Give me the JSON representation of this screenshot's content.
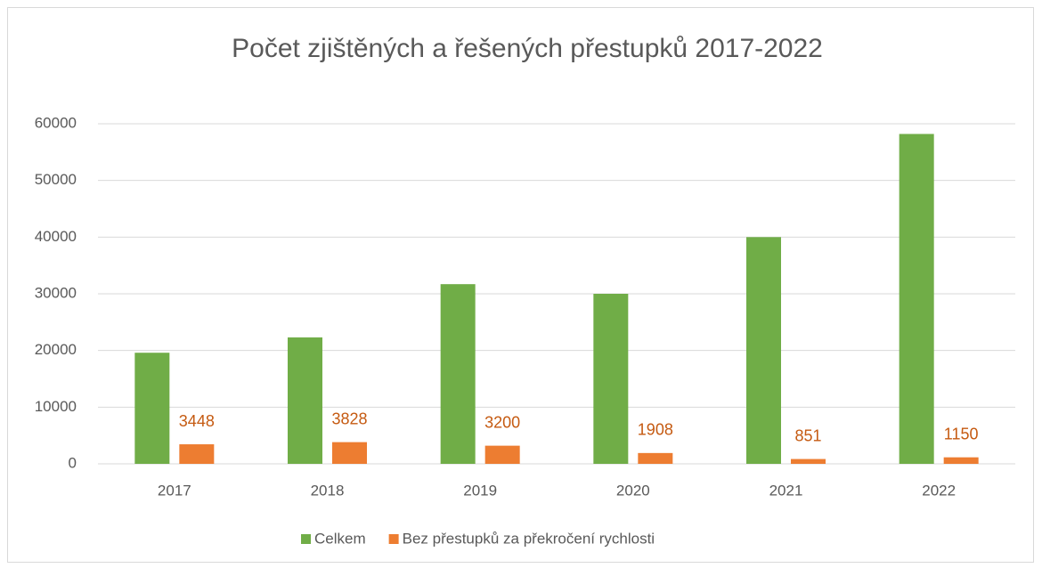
{
  "chart_data": {
    "type": "bar",
    "title": "Počet zjištěných a řešených přestupků 2017-2022",
    "categories": [
      "2017",
      "2018",
      "2019",
      "2020",
      "2021",
      "2022"
    ],
    "series": [
      {
        "name": "Celkem",
        "color": "#70ad47",
        "values": [
          19600,
          22300,
          31700,
          30000,
          40000,
          58200
        ]
      },
      {
        "name": "Bez přestupků za překročení rychlosti",
        "color": "#ed7d31",
        "values": [
          3448,
          3828,
          3200,
          1908,
          851,
          1150
        ]
      }
    ],
    "ylim": [
      0,
      60000
    ],
    "yticks": [
      0,
      10000,
      20000,
      30000,
      40000,
      50000,
      60000
    ],
    "grid": true,
    "legend": "bottom"
  }
}
